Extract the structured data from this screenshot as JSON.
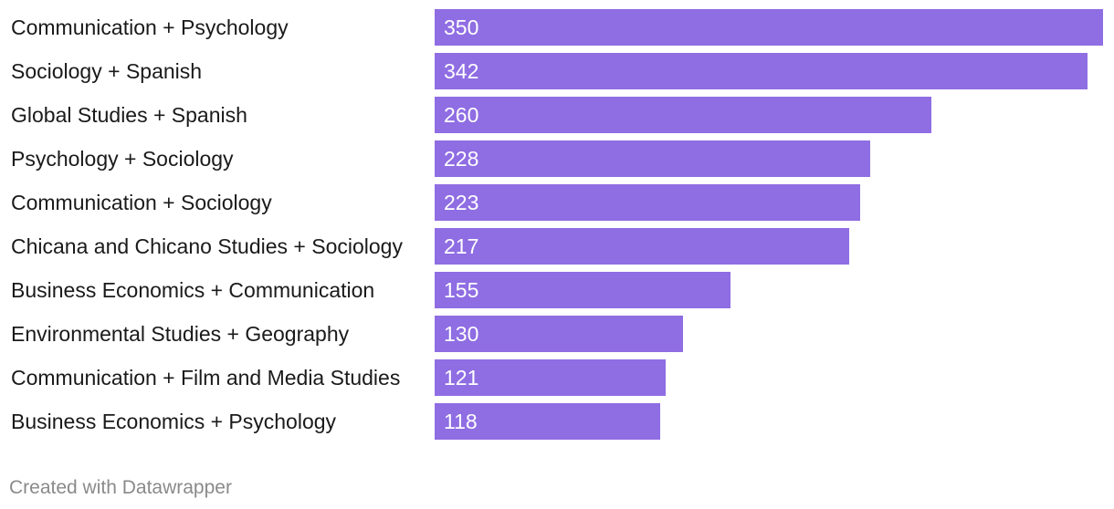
{
  "chart_data": {
    "type": "bar",
    "orientation": "horizontal",
    "categories": [
      "Communication + Psychology",
      "Sociology + Spanish",
      "Global Studies + Spanish",
      "Psychology + Sociology",
      "Communication + Sociology",
      "Chicana and Chicano Studies + Sociology",
      "Business Economics + Communication",
      "Environmental Studies + Geography",
      "Communication + Film and Media Studies",
      "Business Economics + Psychology"
    ],
    "values": [
      350,
      342,
      260,
      228,
      223,
      217,
      155,
      130,
      121,
      118
    ],
    "xlim": [
      0,
      350
    ],
    "title": "",
    "xlabel": "",
    "ylabel": "",
    "bar_color": "#8f6de3"
  },
  "footer": {
    "credit": "Created with Datawrapper"
  }
}
